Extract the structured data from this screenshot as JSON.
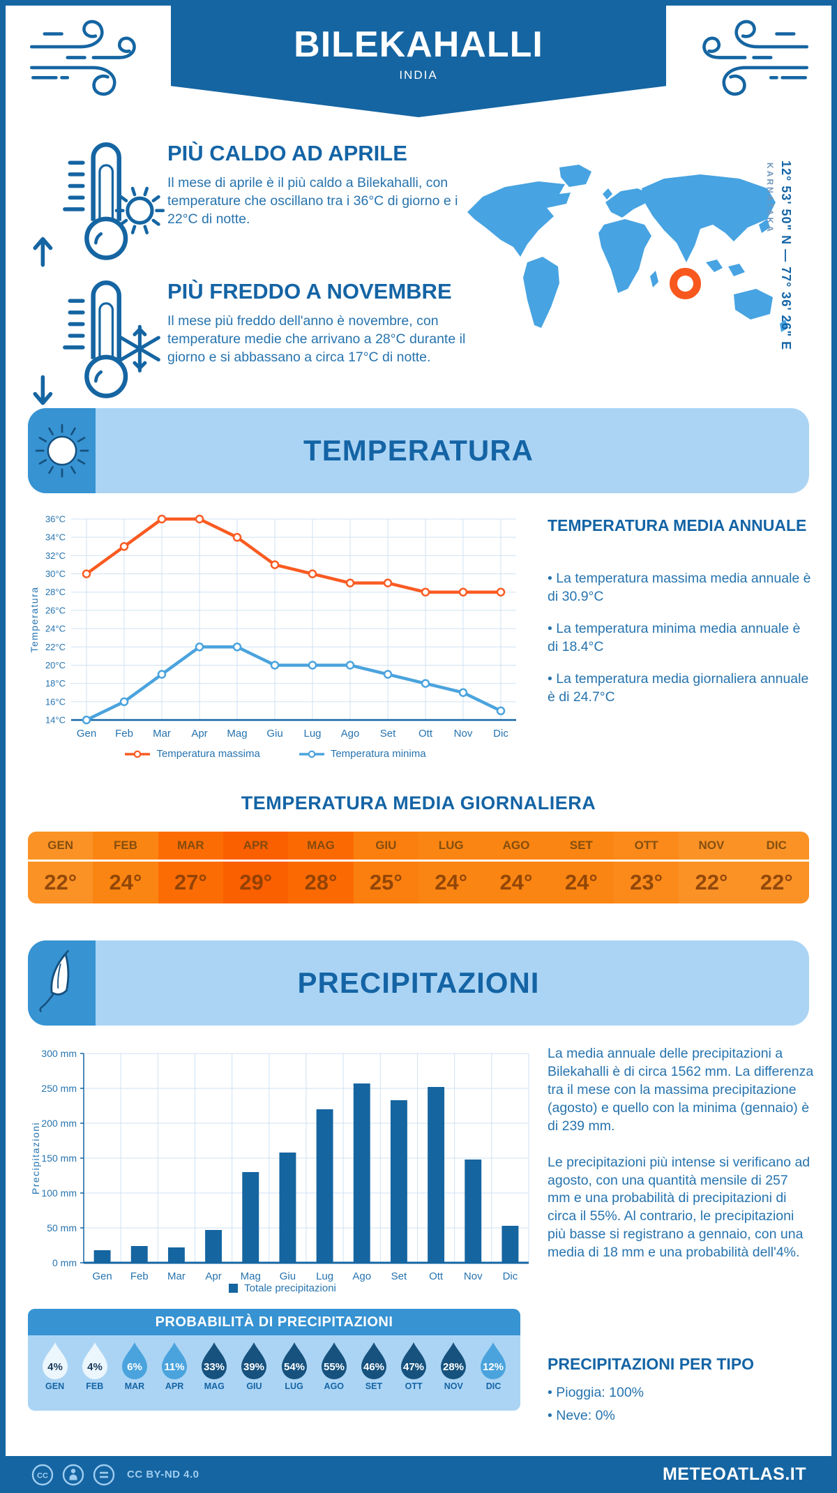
{
  "meta": {
    "location": "BILEKAHALLI",
    "country": "INDIA",
    "coordinates": "12° 53' 50\" N — 77° 36' 26\" E",
    "region": "KARNATAKA"
  },
  "highlights": {
    "warm": {
      "title": "PIÙ CALDO AD APRILE",
      "text": "Il mese di aprile è il più caldo a Bilekahalli, con temperature che oscillano tra i 36°C di giorno e i 22°C di notte."
    },
    "cold": {
      "title": "PIÙ FREDDO A NOVEMBRE",
      "text": "Il mese più freddo dell'anno è novembre, con temperature medie che arrivano a 28°C durante il giorno e si abbassano a circa 17°C di notte."
    }
  },
  "temperature_section": {
    "title": "TEMPERATURA",
    "annual": {
      "title": "TEMPERATURA MEDIA ANNUALE",
      "bullets": [
        "• La temperatura massima media annuale è di 30.9°C",
        "• La temperatura minima media annuale è di 18.4°C",
        "• La temperatura media giornaliera annuale è di 24.7°C"
      ]
    },
    "daily": {
      "title": "TEMPERATURA MEDIA GIORNALIERA",
      "months": [
        "GEN",
        "FEB",
        "MAR",
        "APR",
        "MAG",
        "GIU",
        "LUG",
        "AGO",
        "SET",
        "OTT",
        "NOV",
        "DIC"
      ],
      "values": [
        "22°",
        "24°",
        "27°",
        "29°",
        "28°",
        "25°",
        "24°",
        "24°",
        "24°",
        "23°",
        "22°",
        "22°"
      ],
      "cell_colors": [
        "#fb9226",
        "#fb8512",
        "#fb6d04",
        "#fa5f00",
        "#fb6a02",
        "#fb7f0e",
        "#fb8512",
        "#fb8512",
        "#fb8512",
        "#fb8a1b",
        "#fb9226",
        "#fb9226"
      ]
    }
  },
  "precipitation_section": {
    "title": "PRECIPITAZIONI",
    "paragraphs": [
      "La media annuale delle precipitazioni a Bilekahalli è di circa 1562 mm. La differenza tra il mese con la massima precipitazione (agosto) e quello con la minima (gennaio) è di 239 mm.",
      "Le precipitazioni più intense si verificano ad agosto, con una quantità mensile di 257 mm e una probabilità di precipitazioni di circa il 55%. Al contrario, le precipitazioni più basse si registrano a gennaio, con una media di 18 mm e una probabilità dell'4%."
    ],
    "probability": {
      "title": "PROBABILITÀ DI PRECIPITAZIONI",
      "months": [
        "GEN",
        "FEB",
        "MAR",
        "APR",
        "MAG",
        "GIU",
        "LUG",
        "AGO",
        "SET",
        "OTT",
        "NOV",
        "DIC"
      ],
      "values": [
        "4%",
        "4%",
        "6%",
        "11%",
        "33%",
        "39%",
        "54%",
        "55%",
        "46%",
        "47%",
        "28%",
        "12%"
      ],
      "drop_colors": [
        "#ecf6fd",
        "#ecf6fd",
        "#4aa3dd",
        "#4aa3dd",
        "#17527e",
        "#17527e",
        "#17527e",
        "#17527e",
        "#17527e",
        "#17527e",
        "#17527e",
        "#4aa3dd"
      ],
      "drop_text_colors": [
        "#1a3a5c",
        "#1a3a5c",
        "#ffffff",
        "#ffffff",
        "#ffffff",
        "#ffffff",
        "#ffffff",
        "#ffffff",
        "#ffffff",
        "#ffffff",
        "#ffffff",
        "#ffffff"
      ]
    },
    "types": {
      "title": "PRECIPITAZIONI PER TIPO",
      "bullets": [
        "• Pioggia: 100%",
        "• Neve: 0%"
      ]
    }
  },
  "chart_data": [
    {
      "type": "line",
      "title": "Temperatura",
      "categories": [
        "Gen",
        "Feb",
        "Mar",
        "Apr",
        "Mag",
        "Giu",
        "Lug",
        "Ago",
        "Set",
        "Ott",
        "Nov",
        "Dic"
      ],
      "series": [
        {
          "name": "Temperatura massima",
          "color": "#f95b22",
          "values": [
            30,
            33,
            36,
            36,
            34,
            31,
            30,
            29,
            29,
            28,
            28,
            28
          ]
        },
        {
          "name": "Temperatura minima",
          "color": "#4aa3dd",
          "values": [
            14,
            16,
            19,
            22,
            22,
            20,
            20,
            20,
            19,
            18,
            17,
            15
          ]
        }
      ],
      "xlabel": "",
      "ylabel": "Temperatura",
      "ylim": [
        14,
        36
      ],
      "ytick_step": 2,
      "ytick_suffix": "°C",
      "grid": true,
      "legend_position": "bottom"
    },
    {
      "type": "bar",
      "title": "Precipitazioni",
      "categories": [
        "Gen",
        "Feb",
        "Mar",
        "Apr",
        "Mag",
        "Giu",
        "Lug",
        "Ago",
        "Set",
        "Ott",
        "Nov",
        "Dic"
      ],
      "values": [
        18,
        24,
        22,
        47,
        130,
        158,
        220,
        257,
        233,
        252,
        148,
        53
      ],
      "legend": "Totale precipitazioni",
      "xlabel": "",
      "ylabel": "Precipitazioni",
      "ylim": [
        0,
        300
      ],
      "ytick_step": 50,
      "ytick_suffix": " mm",
      "grid": true,
      "bar_color": "#1565a0"
    }
  ],
  "footer": {
    "license": "CC BY-ND 4.0",
    "site": "METEOATLAS.IT"
  },
  "colors": {
    "primary": "#1565a2",
    "title_text": "#1464a5",
    "body_text": "#2673ae",
    "light_panel": "#abd4f4",
    "mid_blue": "#3793d2",
    "map_blue": "#47a3e1",
    "marker_orange": "#f8581d",
    "line_max": "#f95b22",
    "line_min": "#4aa3dd",
    "bar_blue": "#1565a0"
  }
}
